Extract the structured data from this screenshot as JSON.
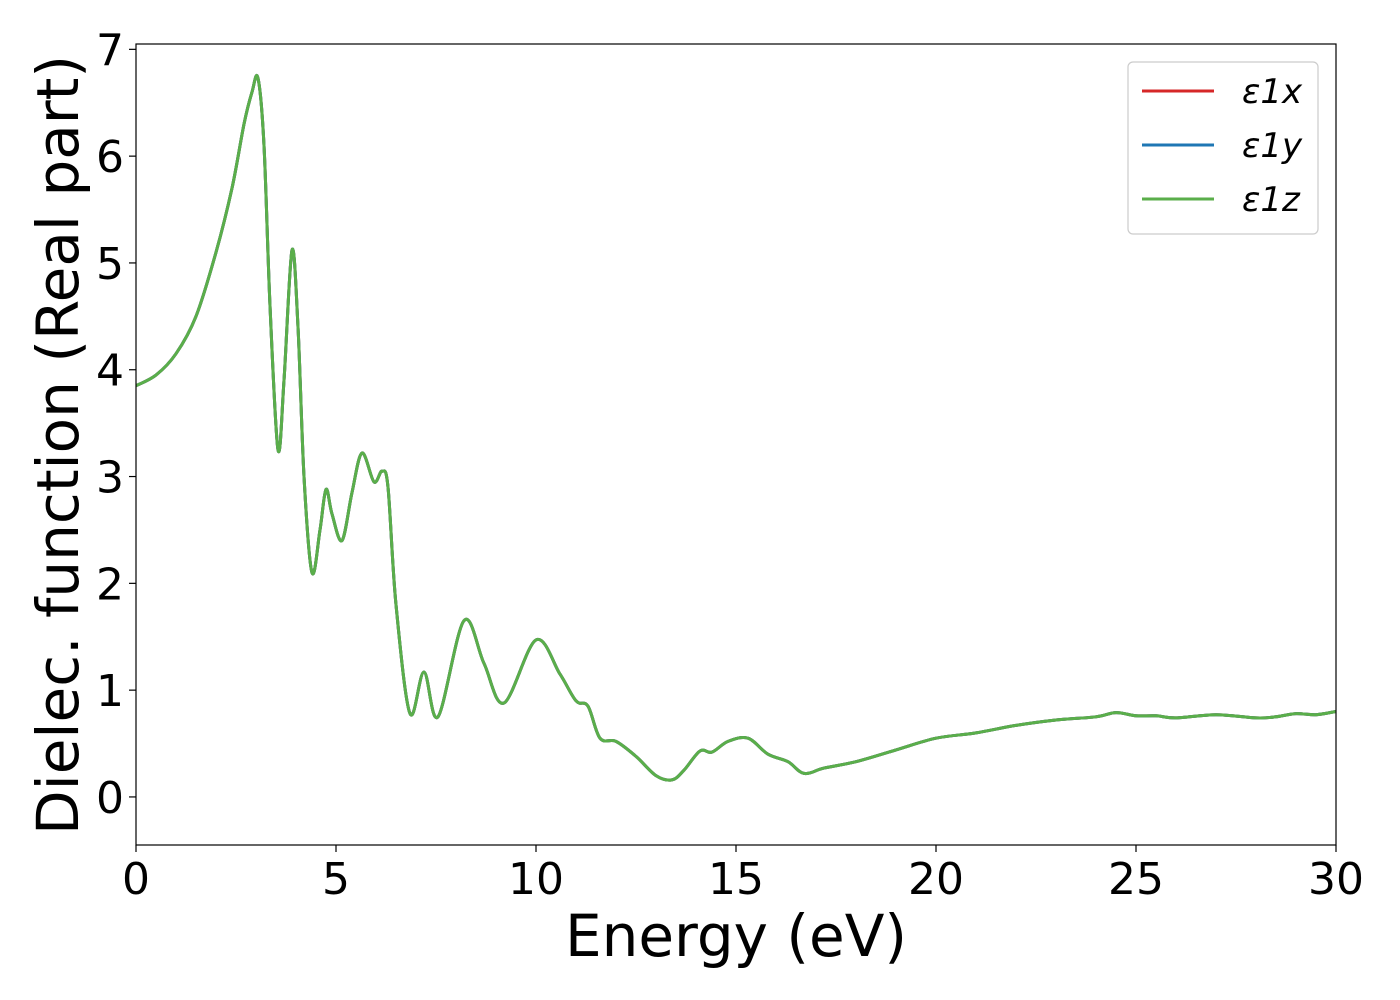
{
  "chart_data": {
    "type": "line",
    "title": "",
    "xlabel": "Energy (eV)",
    "ylabel": "Dielec. function (Real part)",
    "xlim": [
      0,
      30
    ],
    "ylim": [
      -0.45,
      7.05
    ],
    "xticks": [
      0,
      5,
      10,
      15,
      20,
      25,
      30
    ],
    "yticks": [
      0,
      1,
      2,
      3,
      4,
      5,
      6,
      7
    ],
    "grid": false,
    "legend_position": "top-right",
    "series": [
      {
        "name": "ε1x",
        "color": "#d62728",
        "x": [
          0,
          0.5,
          1.0,
          1.5,
          2.0,
          2.4,
          2.7,
          2.9,
          3.05,
          3.2,
          3.35,
          3.55,
          3.7,
          3.9,
          4.05,
          4.2,
          4.4,
          4.6,
          4.75,
          4.9,
          5.15,
          5.4,
          5.65,
          5.95,
          6.15,
          6.3,
          6.5,
          6.85,
          7.2,
          7.55,
          8.2,
          8.7,
          9.2,
          10.0,
          10.6,
          11.0,
          11.3,
          11.6,
          12.0,
          12.5,
          13.0,
          13.4,
          13.7,
          14.1,
          14.4,
          14.8,
          15.3,
          15.8,
          16.3,
          16.7,
          17.2,
          18.0,
          19.0,
          20.0,
          21.0,
          22.0,
          23.0,
          24.0,
          24.5,
          25.0,
          25.5,
          26.0,
          27.0,
          28.0,
          28.5,
          29.0,
          29.5,
          30.0
        ],
        "y": [
          3.85,
          3.95,
          4.15,
          4.5,
          5.1,
          5.7,
          6.3,
          6.6,
          6.73,
          6.1,
          4.6,
          3.25,
          3.9,
          5.12,
          4.4,
          3.0,
          2.1,
          2.5,
          2.88,
          2.65,
          2.4,
          2.85,
          3.22,
          2.95,
          3.05,
          2.9,
          1.8,
          0.78,
          1.17,
          0.75,
          1.65,
          1.25,
          0.88,
          1.47,
          1.15,
          0.9,
          0.85,
          0.55,
          0.52,
          0.38,
          0.2,
          0.16,
          0.25,
          0.43,
          0.42,
          0.52,
          0.55,
          0.4,
          0.33,
          0.22,
          0.27,
          0.33,
          0.44,
          0.55,
          0.6,
          0.67,
          0.72,
          0.75,
          0.79,
          0.76,
          0.76,
          0.74,
          0.77,
          0.74,
          0.75,
          0.78,
          0.77,
          0.8
        ]
      },
      {
        "name": "ε1y",
        "color": "#1f77b4",
        "x": [
          0,
          0.5,
          1.0,
          1.5,
          2.0,
          2.4,
          2.7,
          2.9,
          3.05,
          3.2,
          3.35,
          3.55,
          3.7,
          3.9,
          4.05,
          4.2,
          4.4,
          4.6,
          4.75,
          4.9,
          5.15,
          5.4,
          5.65,
          5.95,
          6.15,
          6.3,
          6.5,
          6.85,
          7.2,
          7.55,
          8.2,
          8.7,
          9.2,
          10.0,
          10.6,
          11.0,
          11.3,
          11.6,
          12.0,
          12.5,
          13.0,
          13.4,
          13.7,
          14.1,
          14.4,
          14.8,
          15.3,
          15.8,
          16.3,
          16.7,
          17.2,
          18.0,
          19.0,
          20.0,
          21.0,
          22.0,
          23.0,
          24.0,
          24.5,
          25.0,
          25.5,
          26.0,
          27.0,
          28.0,
          28.5,
          29.0,
          29.5,
          30.0
        ],
        "y": [
          3.85,
          3.95,
          4.15,
          4.5,
          5.1,
          5.7,
          6.3,
          6.6,
          6.73,
          6.1,
          4.6,
          3.25,
          3.9,
          5.12,
          4.4,
          3.0,
          2.1,
          2.5,
          2.88,
          2.65,
          2.4,
          2.85,
          3.22,
          2.95,
          3.05,
          2.9,
          1.8,
          0.78,
          1.17,
          0.75,
          1.65,
          1.25,
          0.88,
          1.47,
          1.15,
          0.9,
          0.85,
          0.55,
          0.52,
          0.38,
          0.2,
          0.16,
          0.25,
          0.43,
          0.42,
          0.52,
          0.55,
          0.4,
          0.33,
          0.22,
          0.27,
          0.33,
          0.44,
          0.55,
          0.6,
          0.67,
          0.72,
          0.75,
          0.79,
          0.76,
          0.76,
          0.74,
          0.77,
          0.74,
          0.75,
          0.78,
          0.77,
          0.8
        ]
      },
      {
        "name": "ε1z",
        "color": "#5aae4a",
        "x": [
          0,
          0.5,
          1.0,
          1.5,
          2.0,
          2.4,
          2.7,
          2.9,
          3.05,
          3.2,
          3.35,
          3.55,
          3.7,
          3.9,
          4.05,
          4.2,
          4.4,
          4.6,
          4.75,
          4.9,
          5.15,
          5.4,
          5.65,
          5.95,
          6.15,
          6.3,
          6.5,
          6.85,
          7.2,
          7.55,
          8.2,
          8.7,
          9.2,
          10.0,
          10.6,
          11.0,
          11.3,
          11.6,
          12.0,
          12.5,
          13.0,
          13.4,
          13.7,
          14.1,
          14.4,
          14.8,
          15.3,
          15.8,
          16.3,
          16.7,
          17.2,
          18.0,
          19.0,
          20.0,
          21.0,
          22.0,
          23.0,
          24.0,
          24.5,
          25.0,
          25.5,
          26.0,
          27.0,
          28.0,
          28.5,
          29.0,
          29.5,
          30.0
        ],
        "y": [
          3.85,
          3.95,
          4.15,
          4.5,
          5.1,
          5.7,
          6.3,
          6.6,
          6.73,
          6.1,
          4.6,
          3.25,
          3.9,
          5.12,
          4.4,
          3.0,
          2.1,
          2.5,
          2.88,
          2.65,
          2.4,
          2.85,
          3.22,
          2.95,
          3.05,
          2.9,
          1.8,
          0.78,
          1.17,
          0.75,
          1.65,
          1.25,
          0.88,
          1.47,
          1.15,
          0.9,
          0.85,
          0.55,
          0.52,
          0.38,
          0.2,
          0.16,
          0.25,
          0.43,
          0.42,
          0.52,
          0.55,
          0.4,
          0.33,
          0.22,
          0.27,
          0.33,
          0.44,
          0.55,
          0.6,
          0.67,
          0.72,
          0.75,
          0.79,
          0.76,
          0.76,
          0.74,
          0.77,
          0.74,
          0.75,
          0.78,
          0.77,
          0.8
        ]
      }
    ]
  }
}
